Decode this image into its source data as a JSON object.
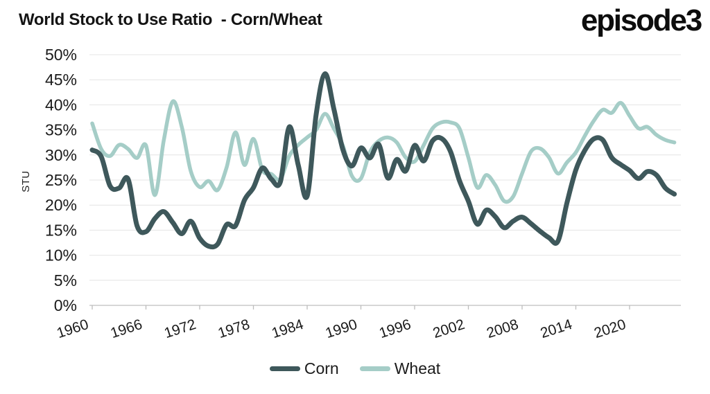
{
  "header": {
    "title": "World Stock to Use Ratio  - Corn/Wheat",
    "logo": "episode3"
  },
  "colors": {
    "corn": "#3e585b",
    "wheat": "#a5cdc7",
    "grid": "#e4e4e4",
    "axis": "#bdbdbd",
    "text": "#1a1a1a",
    "background": "#ffffff"
  },
  "legend": {
    "items": [
      {
        "label": "Corn",
        "color_key": "corn"
      },
      {
        "label": "Wheat",
        "color_key": "wheat"
      }
    ]
  },
  "chart_data": {
    "type": "line",
    "title": "World Stock to Use Ratio  - Corn/Wheat",
    "xlabel": "",
    "ylabel": "STU",
    "ylim": [
      0,
      50
    ],
    "grid": "horizontal",
    "legend_position": "bottom",
    "y_ticks": [
      "0%",
      "5%",
      "10%",
      "15%",
      "20%",
      "25%",
      "30%",
      "35%",
      "40%",
      "45%",
      "50%"
    ],
    "y_tick_values": [
      0,
      5,
      10,
      15,
      20,
      25,
      30,
      35,
      40,
      45,
      50
    ],
    "x_tick_labels": [
      "1960",
      "1966",
      "1972",
      "1978",
      "1984",
      "1990",
      "1996",
      "2002",
      "2008",
      "2014",
      "2020"
    ],
    "x_tick_values": [
      1960,
      1966,
      1972,
      1978,
      1984,
      1990,
      1996,
      2002,
      2008,
      2014,
      2020
    ],
    "x": [
      1960,
      1961,
      1962,
      1963,
      1964,
      1965,
      1966,
      1967,
      1968,
      1969,
      1970,
      1971,
      1972,
      1973,
      1974,
      1975,
      1976,
      1977,
      1978,
      1979,
      1980,
      1981,
      1982,
      1983,
      1984,
      1985,
      1986,
      1987,
      1988,
      1989,
      1990,
      1991,
      1992,
      1993,
      1994,
      1995,
      1996,
      1997,
      1998,
      1999,
      2000,
      2001,
      2002,
      2003,
      2004,
      2005,
      2006,
      2007,
      2008,
      2009,
      2010,
      2011,
      2012,
      2013,
      2014,
      2015,
      2016,
      2017,
      2018,
      2019,
      2020,
      2021,
      2022,
      2023,
      2024,
      2025
    ],
    "series": [
      {
        "name": "Corn",
        "values": [
          31.0,
          29.7,
          23.8,
          23.4,
          25.2,
          15.9,
          14.7,
          17.3,
          18.7,
          16.5,
          14.3,
          16.8,
          13.4,
          11.8,
          12.2,
          16.1,
          15.9,
          21.0,
          23.5,
          27.4,
          25.2,
          24.6,
          35.6,
          28.0,
          21.8,
          38.0,
          46.2,
          39.0,
          31.0,
          27.8,
          31.4,
          29.4,
          32.1,
          25.4,
          29.1,
          26.8,
          31.9,
          28.8,
          32.8,
          33.3,
          30.7,
          24.9,
          20.8,
          16.2,
          19.0,
          17.7,
          15.5,
          16.8,
          17.6,
          16.3,
          14.8,
          13.5,
          12.8,
          20.4,
          27.0,
          30.9,
          33.2,
          33.0,
          29.5,
          28.1,
          26.9,
          25.3,
          26.7,
          26.0,
          23.4,
          22.2
        ]
      },
      {
        "name": "Wheat",
        "values": [
          36.3,
          31.2,
          29.8,
          32.0,
          31.2,
          29.4,
          31.9,
          22.0,
          33.0,
          40.7,
          35.6,
          26.8,
          23.6,
          24.8,
          23.0,
          27.5,
          34.5,
          28.0,
          33.2,
          27.0,
          26.2,
          25.2,
          29.8,
          32.0,
          33.5,
          35.0,
          38.2,
          35.2,
          31.8,
          25.8,
          25.3,
          30.5,
          32.8,
          33.5,
          32.5,
          29.5,
          28.7,
          31.9,
          35.3,
          36.5,
          36.5,
          35.3,
          29.5,
          23.5,
          26.0,
          24.0,
          20.8,
          21.7,
          26.3,
          30.7,
          31.3,
          29.5,
          26.3,
          28.5,
          30.5,
          33.8,
          36.8,
          39.0,
          38.4,
          40.4,
          37.8,
          35.3,
          35.6,
          34.0,
          33.0,
          32.5
        ]
      }
    ]
  }
}
